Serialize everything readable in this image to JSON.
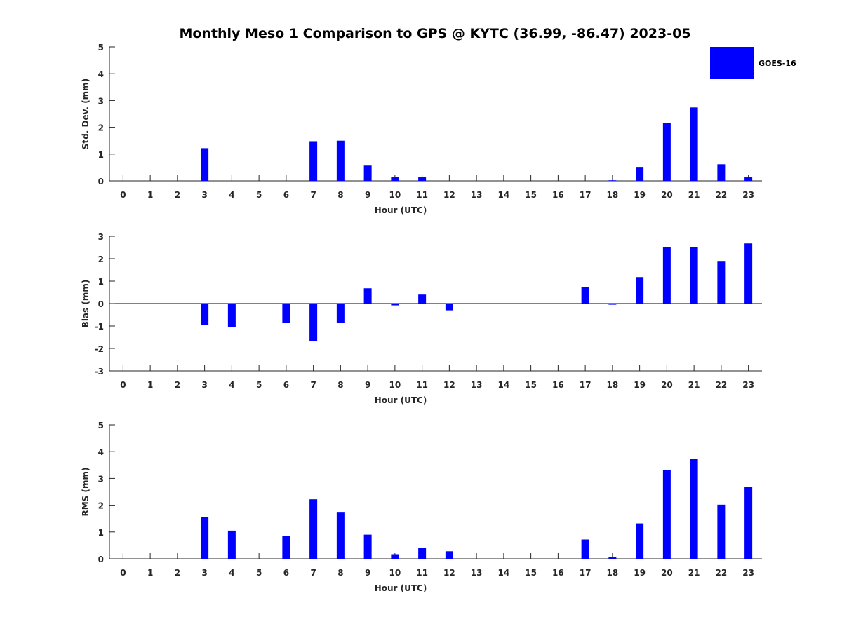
{
  "figure": {
    "title": "Monthly Meso 1 Comparison to GPS @ KYTC (36.99, -86.47) 2023-05"
  },
  "legend": {
    "label": "GOES-16",
    "color": "#0000ff"
  },
  "chart_data": [
    {
      "type": "bar",
      "name": "std-dev",
      "title": "",
      "xlabel": "Hour (UTC)",
      "ylabel": "Std. Dev. (mm)",
      "categories": [
        "0",
        "1",
        "2",
        "3",
        "4",
        "5",
        "6",
        "7",
        "8",
        "9",
        "10",
        "11",
        "12",
        "13",
        "14",
        "15",
        "16",
        "17",
        "18",
        "19",
        "20",
        "21",
        "22",
        "23"
      ],
      "xlim": [
        -0.5,
        23.5
      ],
      "ylim": [
        0,
        5
      ],
      "yticks": [
        0,
        1,
        2,
        3,
        4,
        5
      ],
      "series": [
        {
          "name": "GOES-16",
          "color": "#0000ff",
          "values": [
            0,
            0,
            0,
            1.22,
            0,
            0,
            0,
            1.48,
            1.5,
            0.57,
            0.13,
            0.13,
            0,
            0,
            0,
            0,
            0,
            0,
            0.02,
            0.52,
            2.16,
            2.74,
            0.62,
            0.13
          ]
        }
      ]
    },
    {
      "type": "bar",
      "name": "bias",
      "title": "",
      "xlabel": "Hour (UTC)",
      "ylabel": "Bias (mm)",
      "categories": [
        "0",
        "1",
        "2",
        "3",
        "4",
        "5",
        "6",
        "7",
        "8",
        "9",
        "10",
        "11",
        "12",
        "13",
        "14",
        "15",
        "16",
        "17",
        "18",
        "19",
        "20",
        "21",
        "22",
        "23"
      ],
      "xlim": [
        -0.5,
        23.5
      ],
      "ylim": [
        -3,
        3
      ],
      "yticks": [
        -3,
        -2,
        -1,
        0,
        1,
        2,
        3
      ],
      "zero_line": true,
      "series": [
        {
          "name": "GOES-16",
          "color": "#0000ff",
          "values": [
            0,
            0,
            0,
            -0.95,
            -1.05,
            0,
            -0.87,
            -1.67,
            -0.87,
            0.68,
            -0.08,
            0.4,
            -0.3,
            0,
            0,
            0,
            0,
            0.72,
            -0.05,
            1.18,
            2.52,
            2.5,
            1.9,
            2.68
          ]
        }
      ]
    },
    {
      "type": "bar",
      "name": "rms",
      "title": "",
      "xlabel": "Hour (UTC)",
      "ylabel": "RMS (mm)",
      "categories": [
        "0",
        "1",
        "2",
        "3",
        "4",
        "5",
        "6",
        "7",
        "8",
        "9",
        "10",
        "11",
        "12",
        "13",
        "14",
        "15",
        "16",
        "17",
        "18",
        "19",
        "20",
        "21",
        "22",
        "23"
      ],
      "xlim": [
        -0.5,
        23.5
      ],
      "ylim": [
        0,
        5
      ],
      "yticks": [
        0,
        1,
        2,
        3,
        4,
        5
      ],
      "series": [
        {
          "name": "GOES-16",
          "color": "#0000ff",
          "values": [
            0,
            0,
            0,
            1.55,
            1.05,
            0,
            0.85,
            2.22,
            1.75,
            0.9,
            0.17,
            0.4,
            0.28,
            0,
            0,
            0,
            0,
            0.72,
            0.07,
            1.32,
            3.32,
            3.72,
            2.02,
            2.67
          ]
        }
      ]
    }
  ]
}
